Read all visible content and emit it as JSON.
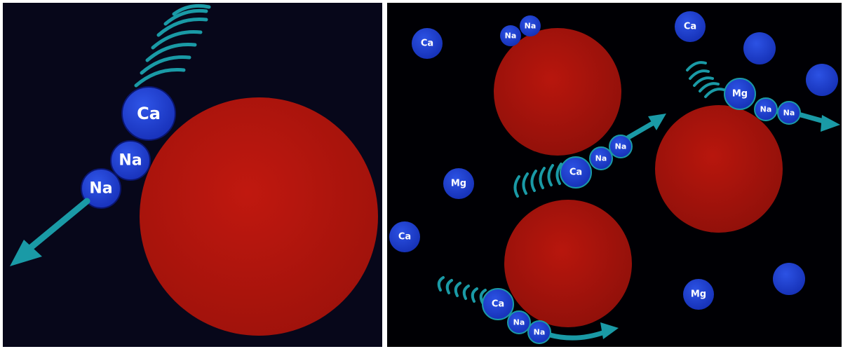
{
  "colors": {
    "background_left": "#07071a",
    "background_right": "#000004",
    "particle": "#b3140c",
    "ion": "#1f3fd0",
    "arrow": "#1a9aa6"
  },
  "left_panel": {
    "ions": [
      {
        "label": "Ca"
      },
      {
        "label": "Na"
      },
      {
        "label": "Na"
      }
    ]
  },
  "right_panel": {
    "free_ions": [
      {
        "label": "Ca"
      },
      {
        "label": "Ca"
      },
      {
        "label": "Mg"
      },
      {
        "label": "Ca"
      },
      {
        "label": "Mg"
      },
      {
        "label": ""
      },
      {
        "label": ""
      },
      {
        "label": ""
      }
    ],
    "top_pair": [
      {
        "label": "Na"
      },
      {
        "label": "Na"
      }
    ],
    "center_chain": [
      {
        "label": "Ca"
      },
      {
        "label": "Na"
      },
      {
        "label": "Na"
      }
    ],
    "right_chain": [
      {
        "label": "Mg"
      },
      {
        "label": "Na"
      },
      {
        "label": "Na"
      }
    ],
    "bottom_chain": [
      {
        "label": "Ca"
      },
      {
        "label": "Na"
      },
      {
        "label": "Na"
      }
    ]
  }
}
